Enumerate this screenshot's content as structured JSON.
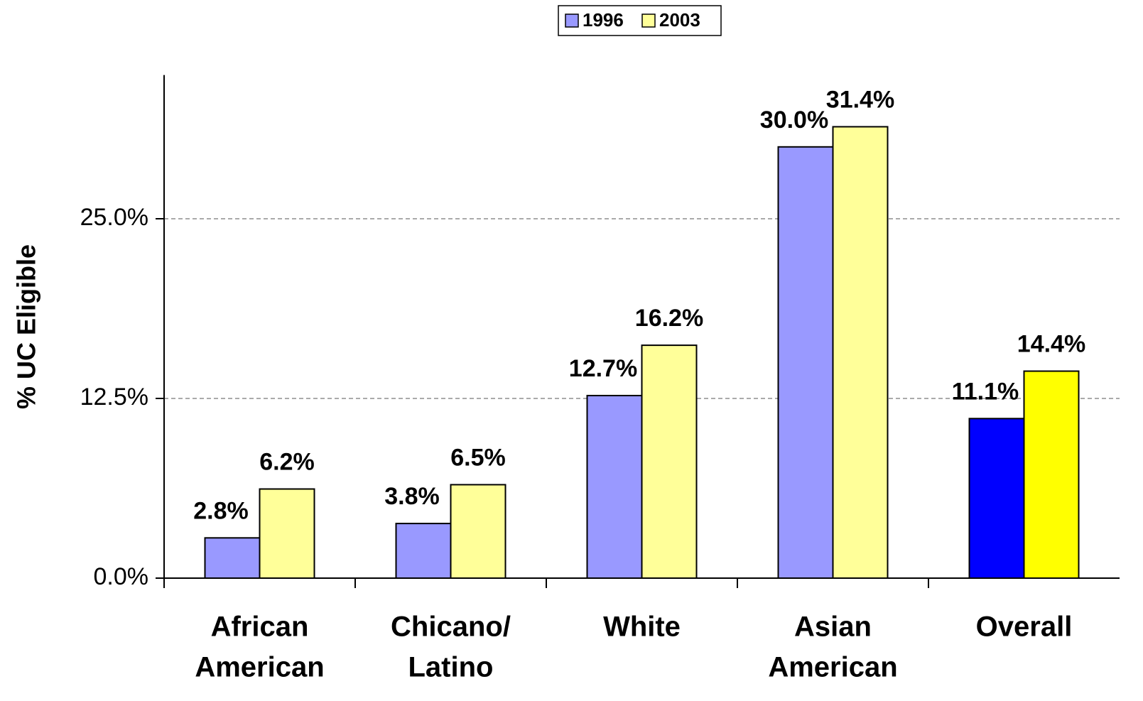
{
  "chart_data": {
    "type": "bar",
    "y_label": "% UC Eligible",
    "categories": [
      [
        "African",
        "American"
      ],
      [
        "Chicano/",
        "Latino"
      ],
      [
        "White"
      ],
      [
        "Asian",
        "American"
      ],
      [
        "Overall"
      ]
    ],
    "series": [
      {
        "name": "1996",
        "color": "#9999ff",
        "colors": [
          "#9999ff",
          "#9999ff",
          "#9999ff",
          "#9999ff",
          "#0000ff"
        ],
        "values": [
          2.8,
          3.8,
          12.7,
          30.0,
          11.1
        ],
        "value_labels": [
          "2.8%",
          "3.8%",
          "12.7%",
          "30.0%",
          "11.1%"
        ]
      },
      {
        "name": "2003",
        "color": "#ffff99",
        "colors": [
          "#ffff99",
          "#ffff99",
          "#ffff99",
          "#ffff99",
          "#ffff00"
        ],
        "values": [
          6.2,
          6.5,
          16.2,
          31.4,
          14.4
        ],
        "value_labels": [
          "6.2%",
          "6.5%",
          "16.2%",
          "31.4%",
          "14.4%"
        ]
      }
    ],
    "ylim": [
      0,
      35
    ],
    "yticks": [
      {
        "value": 0,
        "label": "0.0%"
      },
      {
        "value": 12.5,
        "label": "12.5%"
      },
      {
        "value": 25,
        "label": "25.0%"
      }
    ],
    "grid": true,
    "legend": "top"
  }
}
